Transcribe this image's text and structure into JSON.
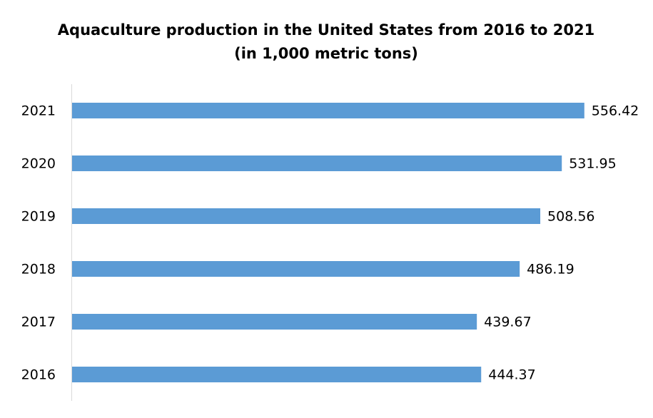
{
  "chart_data": {
    "type": "bar",
    "orientation": "horizontal",
    "title": "Aquaculture production in the United States from 2016 to 2021",
    "subtitle": "(in 1,000 metric tons)",
    "categories": [
      "2016",
      "2017",
      "2018",
      "2019",
      "2020",
      "2021"
    ],
    "values": [
      444.37,
      439.67,
      486.19,
      508.56,
      531.95,
      556.42
    ],
    "color": "#5b9bd5"
  }
}
